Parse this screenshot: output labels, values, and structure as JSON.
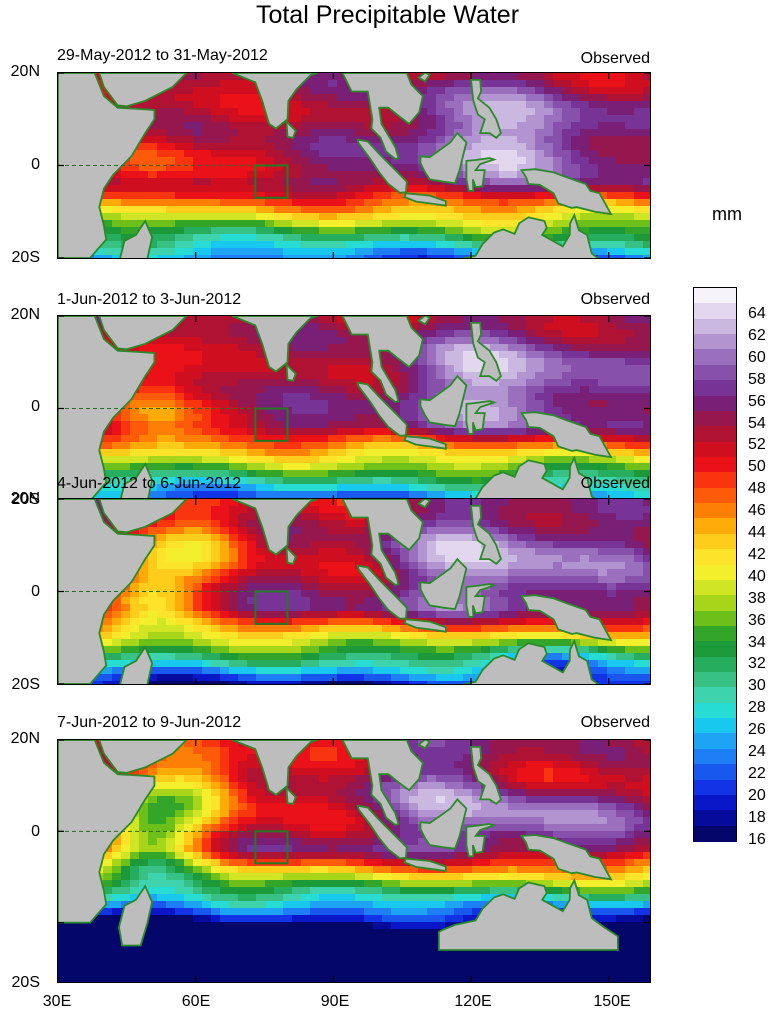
{
  "title": "Total Precipitable Water",
  "units": "mm",
  "panels": [
    {
      "period": "29-May-2012 to 31-May-2012",
      "status": "Observed"
    },
    {
      "period": "1-Jun-2012 to 3-Jun-2012",
      "status": "Observed"
    },
    {
      "period": "4-Jun-2012 to 6-Jun-2012",
      "status": "Observed"
    },
    {
      "period": "7-Jun-2012 to 9-Jun-2012",
      "status": "Observed"
    }
  ],
  "lat_labels": [
    "20N",
    "0",
    "20S"
  ],
  "lon_labels": [
    "30E",
    "60E",
    "90E",
    "120E",
    "150E"
  ],
  "colorbar": {
    "labels": [
      "64",
      "62",
      "60",
      "58",
      "56",
      "54",
      "52",
      "50",
      "48",
      "46",
      "44",
      "42",
      "40",
      "38",
      "36",
      "34",
      "32",
      "30",
      "28",
      "26",
      "24",
      "22",
      "20",
      "18",
      "16"
    ],
    "colors": [
      "#f6f3fb",
      "#e2d7ee",
      "#cbb8e1",
      "#b295d0",
      "#9a6fbe",
      "#8650ab",
      "#773395",
      "#7a1f76",
      "#96174d",
      "#b01233",
      "#cf0e1f",
      "#ea1218",
      "#f9350f",
      "#fd5a09",
      "#fd7f05",
      "#feaa08",
      "#fecd1c",
      "#fde42a",
      "#f3ef2d",
      "#d0e523",
      "#a7d51a",
      "#6dbf1a",
      "#33a528",
      "#1c9a3a",
      "#27ad5e",
      "#37c184",
      "#3dd4ad",
      "#27dcd3",
      "#18c8ee",
      "#1ea4f5",
      "#1d7ef5",
      "#1858ef",
      "#1234e6",
      "#0a17c8",
      "#070b9c",
      "#05066a"
    ]
  },
  "colors": {
    "land": "#bdbdbd",
    "coast": "#2a8a2a",
    "box": "#237a23"
  }
}
